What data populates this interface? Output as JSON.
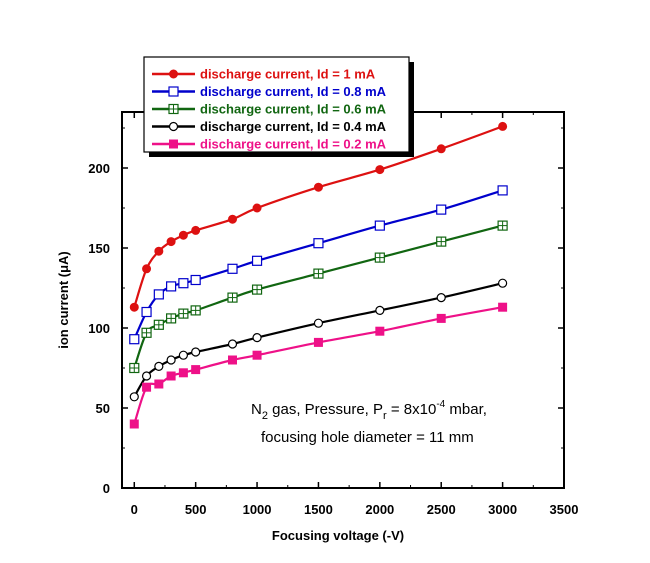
{
  "chart_data": {
    "type": "line",
    "title": "",
    "xlabel": "Focusing voltage (-V)",
    "ylabel": "ion current (μA)",
    "xlim": [
      -100,
      3500
    ],
    "ylim": [
      0,
      235
    ],
    "xticks": [
      0,
      500,
      1000,
      1500,
      2000,
      2500,
      3000,
      3500
    ],
    "yticks": [
      0,
      50,
      100,
      150,
      200
    ],
    "legend_position": "top-left",
    "annotation": {
      "line1_parts": [
        "N",
        "2",
        " gas, Pressure, P",
        "r",
        " = 8x10",
        "-4",
        " mbar,"
      ],
      "line2": "focusing hole diameter = 11 mm"
    },
    "series": [
      {
        "name": "discharge current, Id = 1 mA",
        "color": "#dd1111",
        "marker": "filled-circle",
        "x": [
          0,
          100,
          200,
          300,
          400,
          500,
          800,
          1000,
          1500,
          2000,
          2500,
          3000
        ],
        "y": [
          113,
          137,
          148,
          154,
          158,
          161,
          168,
          175,
          188,
          199,
          212,
          226
        ]
      },
      {
        "name": "discharge current, Id = 0.8 mA",
        "color": "#0000cc",
        "marker": "open-square",
        "x": [
          0,
          100,
          200,
          300,
          400,
          500,
          800,
          1000,
          1500,
          2000,
          2500,
          3000
        ],
        "y": [
          93,
          110,
          121,
          126,
          128,
          130,
          137,
          142,
          153,
          164,
          174,
          186
        ]
      },
      {
        "name": "discharge current, Id = 0.6 mA",
        "color": "#116611",
        "marker": "crossed-square",
        "x": [
          0,
          100,
          200,
          300,
          400,
          500,
          800,
          1000,
          1500,
          2000,
          2500,
          3000
        ],
        "y": [
          75,
          97,
          102,
          106,
          109,
          111,
          119,
          124,
          134,
          144,
          154,
          164
        ]
      },
      {
        "name": "discharge current, Id = 0.4 mA",
        "color": "#000000",
        "marker": "open-circle",
        "x": [
          0,
          100,
          200,
          300,
          400,
          500,
          800,
          1000,
          1500,
          2000,
          2500,
          3000
        ],
        "y": [
          57,
          70,
          76,
          80,
          83,
          85,
          90,
          94,
          103,
          111,
          119,
          128
        ]
      },
      {
        "name": "discharge current, Id = 0.2 mA",
        "color": "#ee1188",
        "marker": "filled-square",
        "x": [
          0,
          100,
          200,
          300,
          400,
          500,
          800,
          1000,
          1500,
          2000,
          2500,
          3000
        ],
        "y": [
          40,
          63,
          65,
          70,
          72,
          74,
          80,
          83,
          91,
          98,
          106,
          113
        ]
      }
    ]
  }
}
